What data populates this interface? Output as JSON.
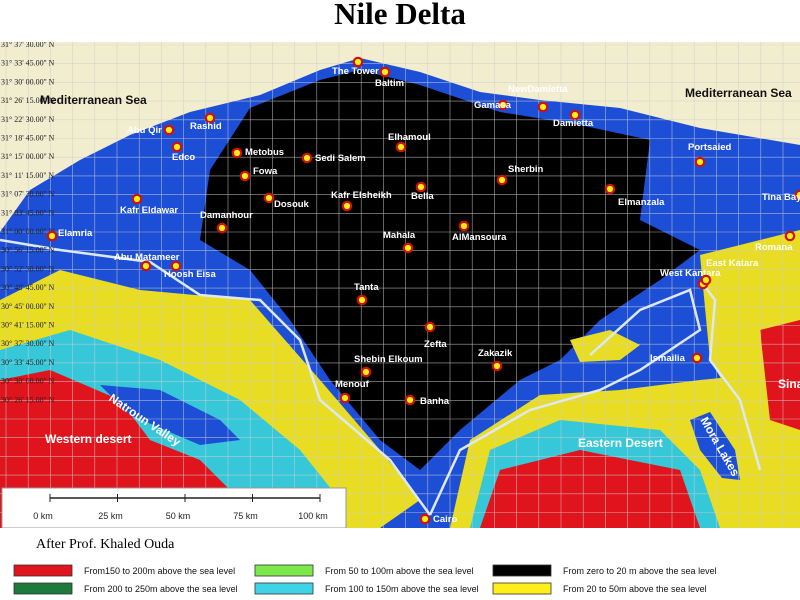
{
  "title": "Nile Delta",
  "latitude_labels": [
    "31° 37' 30.00'' N",
    "31° 33' 45.00'' N",
    "31° 30' 00.00'' N",
    "31° 26' 15.00'' N",
    "31° 22' 30.00'' N",
    "31° 18' 45.00'' N",
    "31° 15' 00.00'' N",
    "31° 11' 15.00'' N",
    "31° 07' 30.00'' N",
    "31° 03' 45.00'' N",
    "31° 00' 00.00'' N",
    "30° 56' 15.00'' N",
    "30° 52' 30.00'' N",
    "30° 48' 45.00'' N",
    "30° 45' 00.00'' N",
    "30° 41' 15.00'' N",
    "30° 37' 30.00'' N",
    "30° 33' 45.00'' N",
    "30° 30' 00.00'' N",
    "30° 26' 15.00'' N"
  ],
  "cities": [
    "The Tower",
    "Baltim",
    "Gamasa",
    "NewDamietta",
    "Damietta",
    "Rashid",
    "Abu Qir",
    "Edco",
    "Metobus",
    "Sedi Salem",
    "Elhamoul",
    "Portsaied",
    "Fowa",
    "Sherbin",
    "Bella",
    "Elmanzala",
    "Kafr Eldawar",
    "Dosouk",
    "Kafr Elsheikh",
    "Damanhour",
    "Elamria",
    "AlMansoura",
    "Mahala",
    "Abu Matameer",
    "Hoosh Eisa",
    "West Kantara",
    "East Katara",
    "Romana",
    "Tina Bay",
    "Tanta",
    "Zefta",
    "Ismailia",
    "Zakazik",
    "Shebin Elkoum",
    "Menouf",
    "Banha",
    "Cairo"
  ],
  "regions": [
    "Mediterranean Sea",
    "Mediterranean Sea",
    "Natroun Valley",
    "Western desert",
    "Eastern Desert",
    "Mora Lakes",
    "Sinai"
  ],
  "scale_labels": [
    "0 km",
    "25 km",
    "50 km",
    "75 km",
    "100 km"
  ],
  "credit": "After Prof. Khaled Ouda",
  "legend": [
    {
      "label": "From150 to 200m above the sea level",
      "color": "#e0141c"
    },
    {
      "label": "From 200 to 250m above the sea level",
      "color": "#1e7a3c"
    },
    {
      "label": "From 50 to 100m above the sea level",
      "color": "#7de84a"
    },
    {
      "label": "From 100 to 150m above the sea level",
      "color": "#3ed4e6"
    },
    {
      "label": "From zero to 20 m above the sea level",
      "color": "#000000"
    },
    {
      "label": "From 20 to 50m above the sea level",
      "color": "#ffee1a"
    }
  ]
}
